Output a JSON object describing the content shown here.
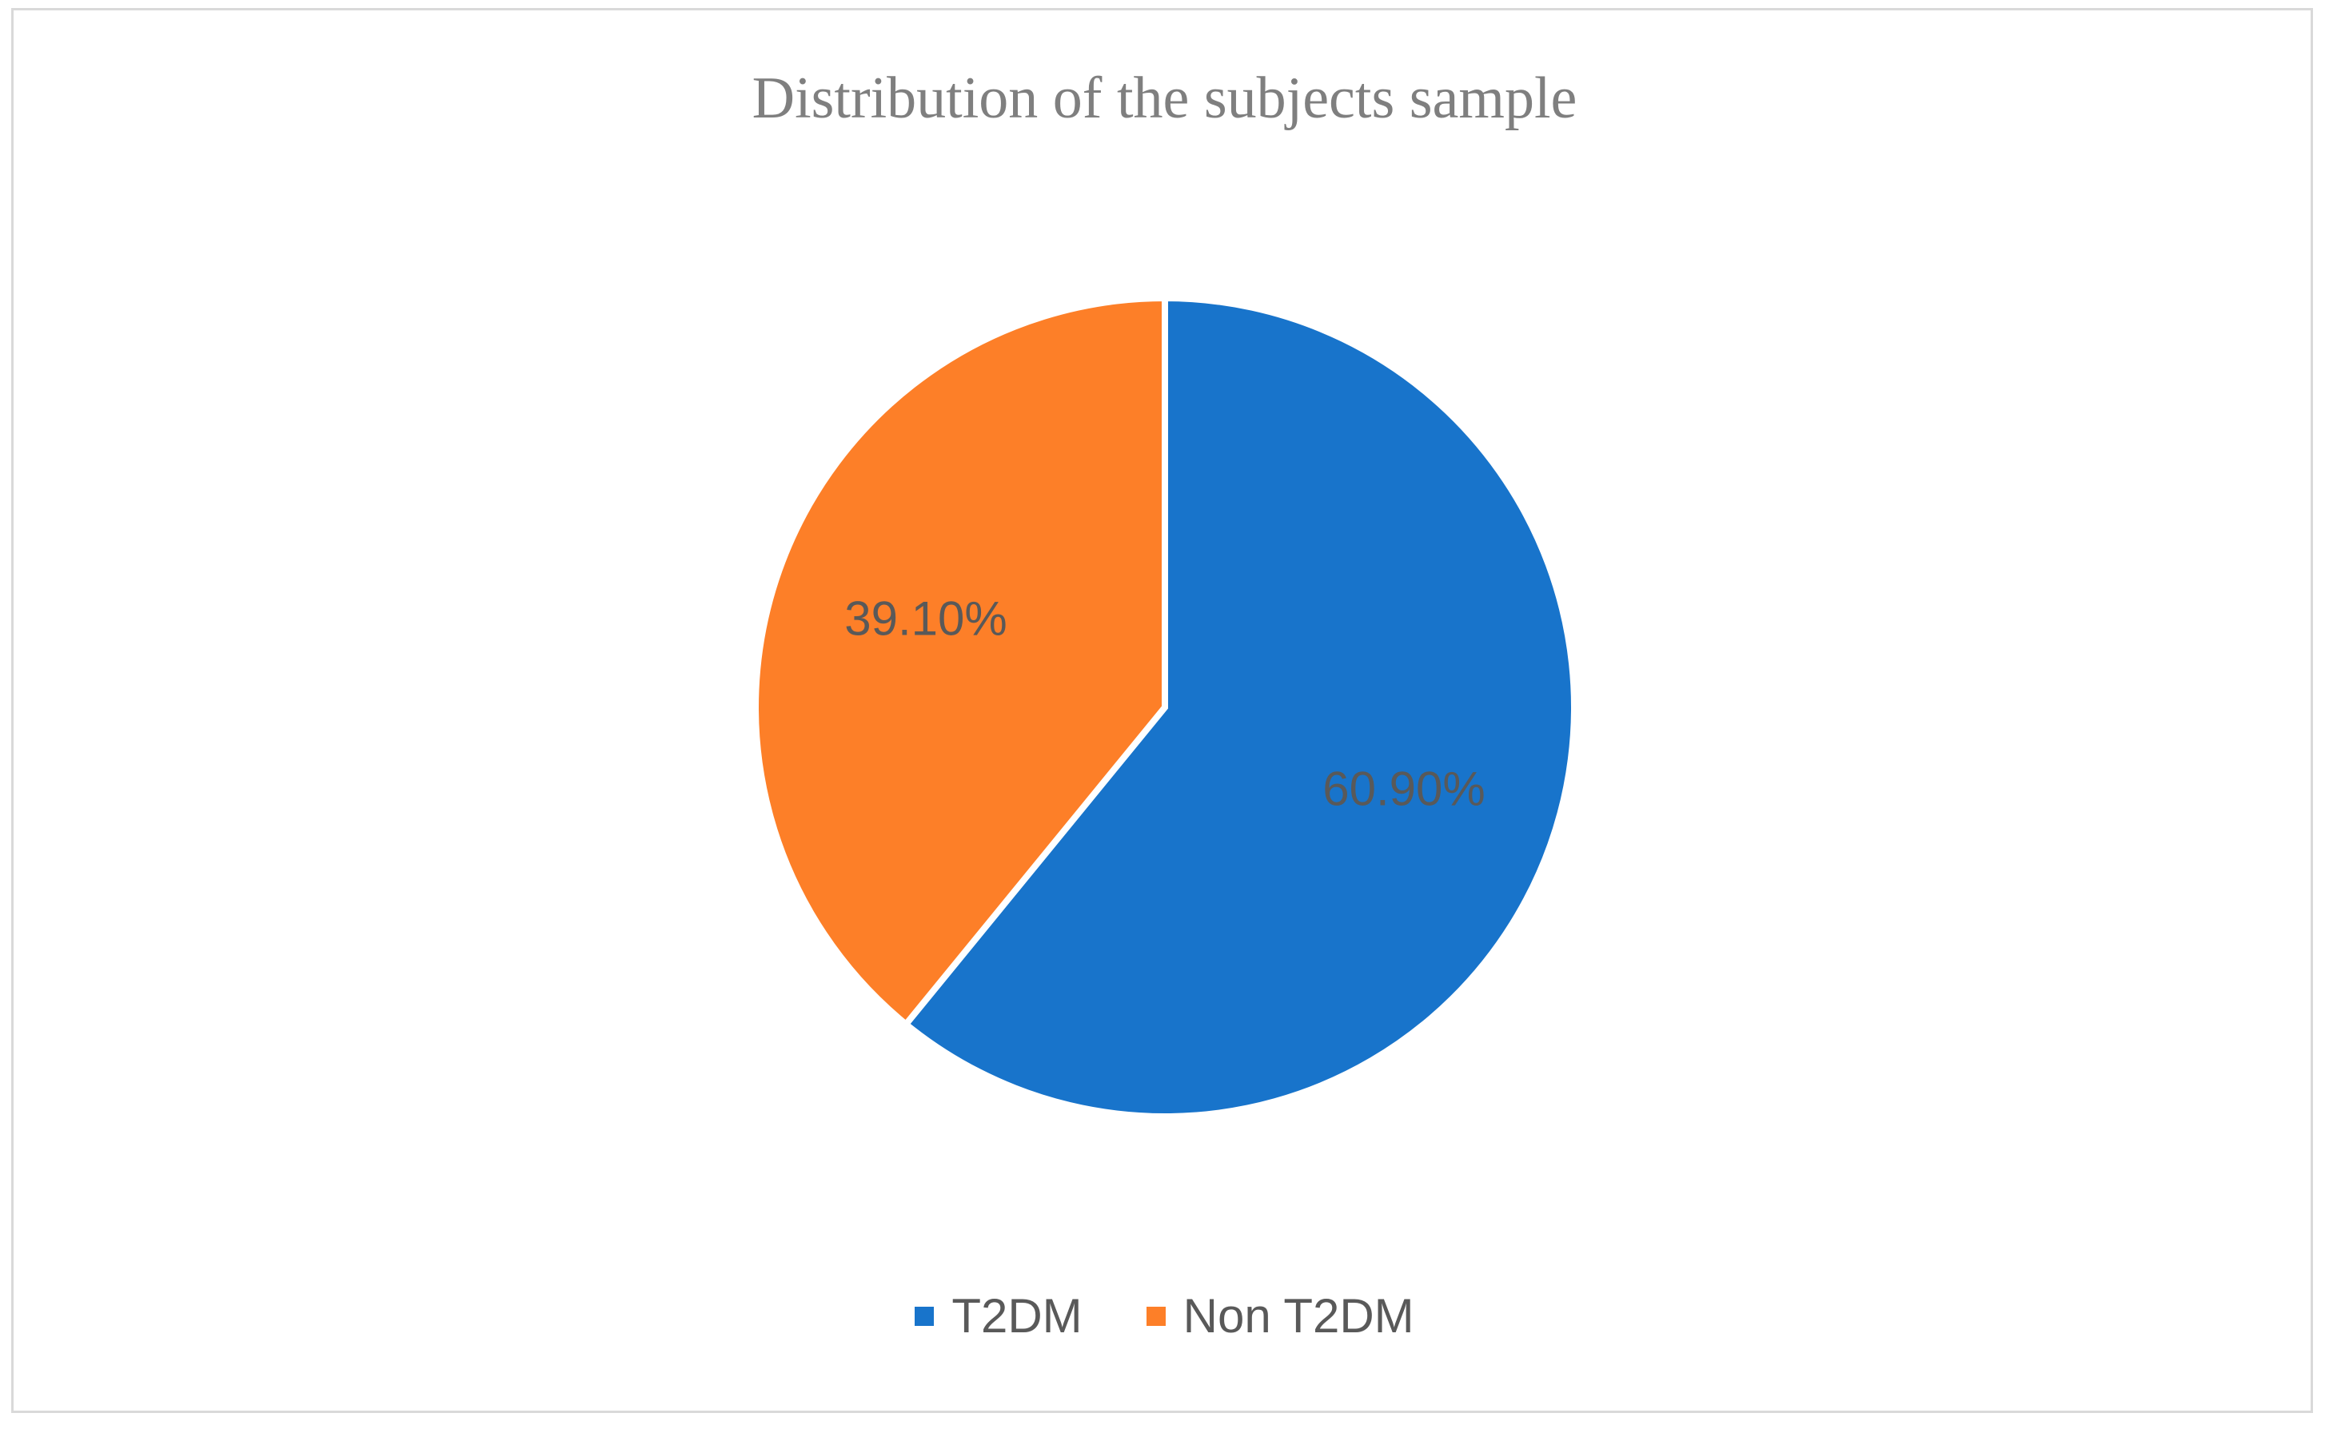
{
  "chart_data": {
    "type": "pie",
    "title": "Distribution of the subjects sample",
    "legend_position": "bottom",
    "slices": [
      {
        "label": "T2DM",
        "value": 60.9,
        "display": "60.90%",
        "color": "#1874cb"
      },
      {
        "label": "Non T2DM",
        "value": 39.1,
        "display": "39.10%",
        "color": "#fd7f28"
      }
    ]
  }
}
